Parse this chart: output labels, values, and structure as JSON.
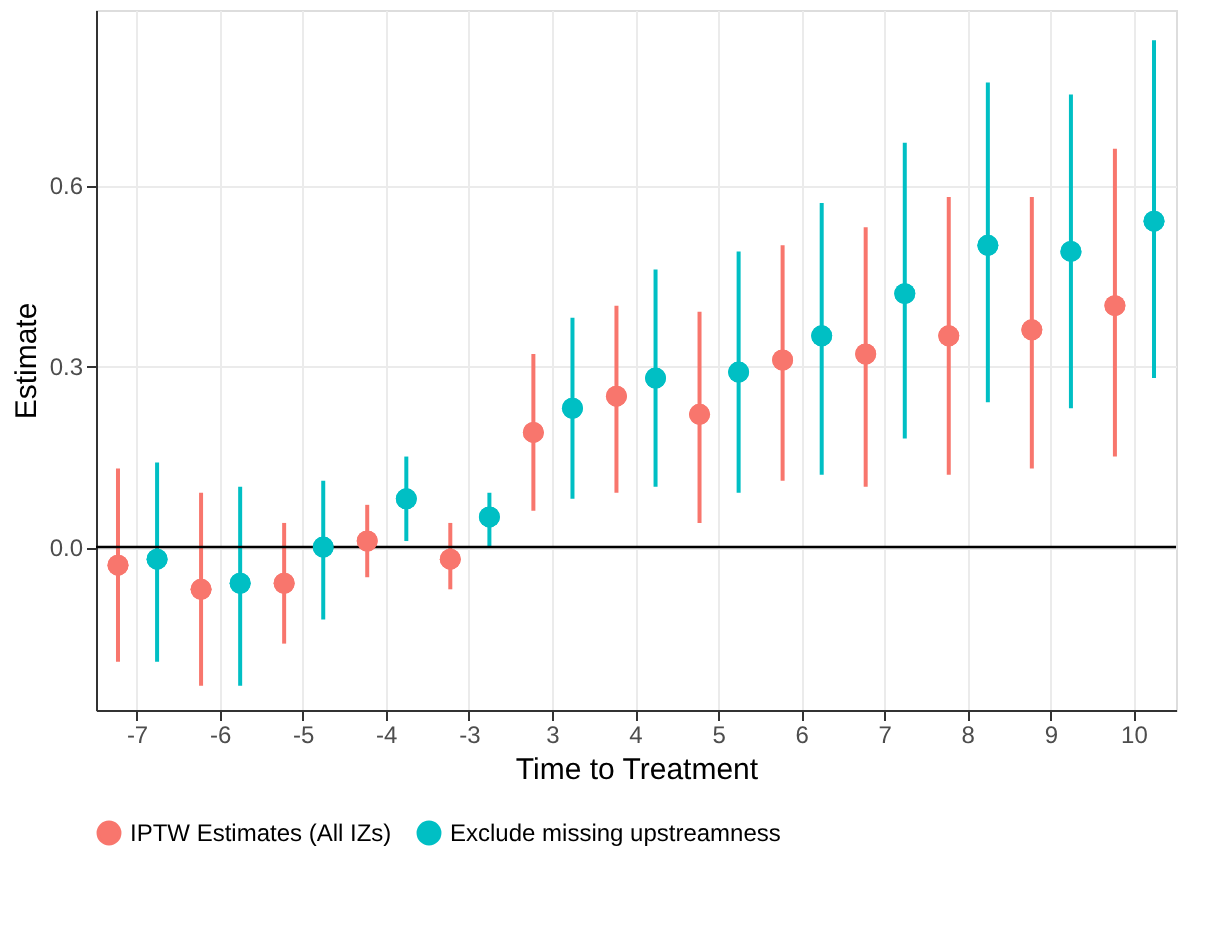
{
  "chart_data": {
    "type": "scatter",
    "xlabel": "Time to Treatment",
    "ylabel": "Estimate",
    "categories": [
      "-7",
      "-6",
      "-5",
      "-4",
      "-3",
      "3",
      "4",
      "5",
      "6",
      "7",
      "8",
      "9",
      "10"
    ],
    "series": [
      {
        "name": "IPTW Estimates (All IZs)",
        "color": "#f8766d",
        "values": [
          -0.03,
          -0.07,
          -0.06,
          0.01,
          -0.02,
          0.19,
          0.25,
          0.22,
          0.31,
          0.32,
          0.35,
          0.36,
          0.4
        ],
        "errors": [
          [
            -0.19,
            0.13
          ],
          [
            -0.23,
            0.09
          ],
          [
            -0.16,
            0.04
          ],
          [
            -0.05,
            0.07
          ],
          [
            -0.07,
            0.04
          ],
          [
            0.06,
            0.32
          ],
          [
            0.09,
            0.4
          ],
          [
            0.04,
            0.39
          ],
          [
            0.11,
            0.5
          ],
          [
            0.1,
            0.53
          ],
          [
            0.12,
            0.58
          ],
          [
            0.13,
            0.58
          ],
          [
            0.15,
            0.66
          ]
        ]
      },
      {
        "name": "Exclude missing upstreamness",
        "color": "#00bfc4",
        "values": [
          -0.02,
          -0.06,
          0.0,
          0.08,
          0.05,
          0.23,
          0.28,
          0.29,
          0.35,
          0.42,
          0.5,
          0.49,
          0.54
        ],
        "errors": [
          [
            -0.19,
            0.14
          ],
          [
            -0.23,
            0.1
          ],
          [
            -0.12,
            0.11
          ],
          [
            0.01,
            0.15
          ],
          [
            0.0,
            0.09
          ],
          [
            0.08,
            0.38
          ],
          [
            0.1,
            0.46
          ],
          [
            0.09,
            0.49
          ],
          [
            0.12,
            0.57
          ],
          [
            0.18,
            0.67
          ],
          [
            0.24,
            0.77
          ],
          [
            0.23,
            0.75
          ],
          [
            0.28,
            0.84
          ]
        ]
      }
    ],
    "ylim": [
      -0.27,
      0.89
    ],
    "yticks": [
      {
        "value": 0.0,
        "label": "0.0"
      },
      {
        "value": 0.3,
        "label": "0.3"
      },
      {
        "value": 0.6,
        "label": "0.6"
      }
    ],
    "ref_lines": [
      {
        "axis": "y",
        "value": 0,
        "color": "#000000"
      }
    ],
    "grid": true,
    "legend": "bottom",
    "marker": "circle"
  }
}
